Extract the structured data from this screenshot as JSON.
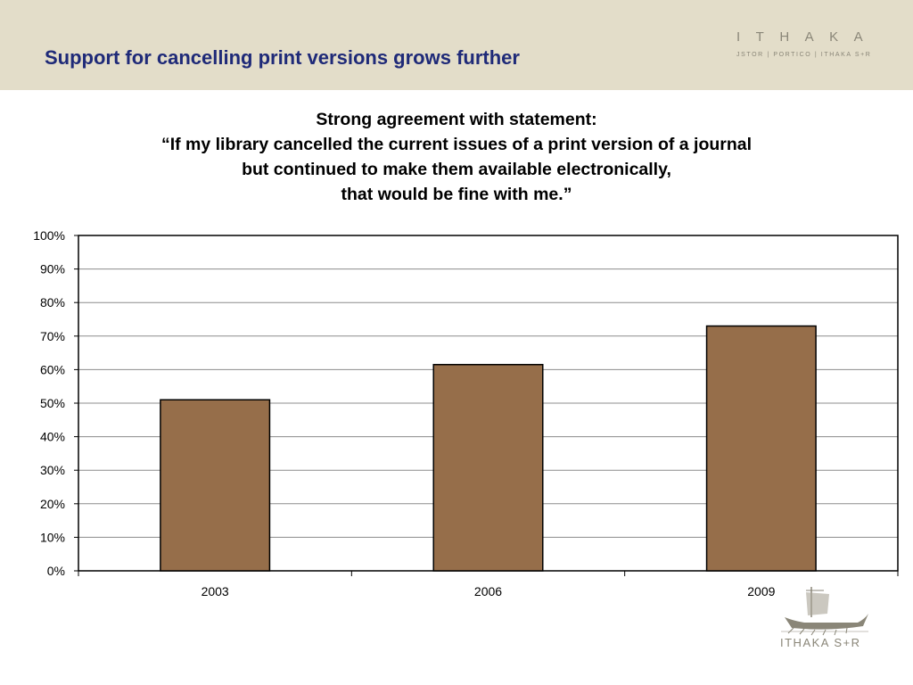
{
  "slide": {
    "title": "Support for cancelling print versions grows further"
  },
  "brand": {
    "name": "ITHAKA",
    "tagline": "JSTOR | PORTICO | ITHAKA S+R",
    "footer_name": "ITHAKA S+R",
    "footer_icon": "ship-icon",
    "color": "#8a8678"
  },
  "chart_heading": {
    "lines": [
      "Strong agreement with statement:",
      "“If my library cancelled the current issues of a print version of a journal",
      "but continued to make them available electronically,",
      "that would be fine with me.”"
    ]
  },
  "chart_data": {
    "type": "bar",
    "categories": [
      "2003",
      "2006",
      "2009"
    ],
    "values": [
      51,
      61.5,
      73
    ],
    "unit": "%",
    "ylim": [
      0,
      100
    ],
    "yticks": [
      0,
      10,
      20,
      30,
      40,
      50,
      60,
      70,
      80,
      90,
      100
    ],
    "ytick_labels": [
      "0%",
      "10%",
      "20%",
      "30%",
      "40%",
      "50%",
      "60%",
      "70%",
      "80%",
      "90%",
      "100%"
    ],
    "grid": true,
    "legend": "none",
    "bar_color": "#966e4a",
    "title": "",
    "xlabel": "",
    "ylabel": ""
  }
}
